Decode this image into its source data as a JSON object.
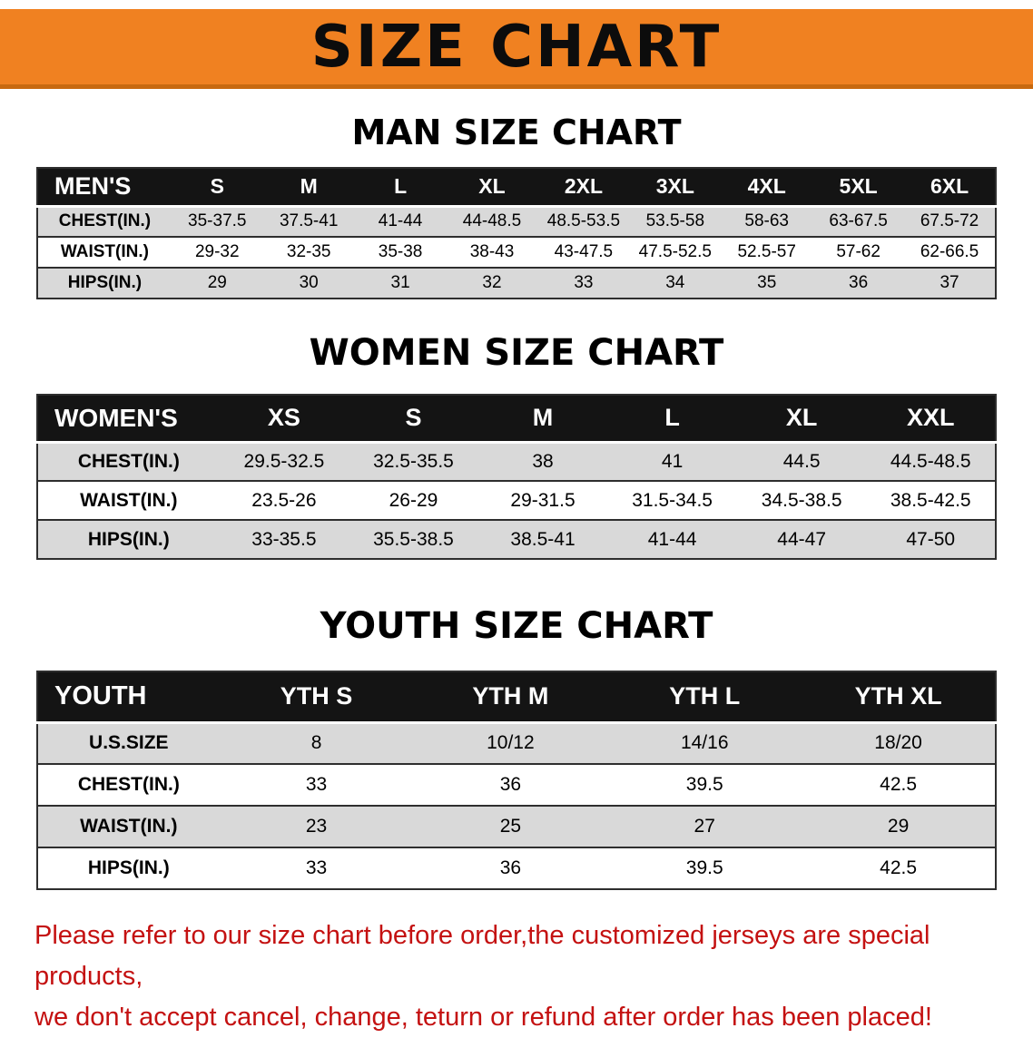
{
  "banner": {
    "title": "SIZE CHART"
  },
  "colors": {
    "banner_bg": "#f08121",
    "banner_edge": "#c8690f",
    "header_row_bg": "#141414",
    "shaded_row_bg": "#d9d9d9",
    "footer_text": "#c41111"
  },
  "sections": [
    {
      "heading": "MAN SIZE CHART",
      "table": {
        "header": [
          "MEN'S",
          "S",
          "M",
          "L",
          "XL",
          "2XL",
          "3XL",
          "4XL",
          "5XL",
          "6XL"
        ],
        "rows": [
          {
            "label": "CHEST(IN.)",
            "values": [
              "35-37.5",
              "37.5-41",
              "41-44",
              "44-48.5",
              "48.5-53.5",
              "53.5-58",
              "58-63",
              "63-67.5",
              "67.5-72"
            ]
          },
          {
            "label": "WAIST(IN.)",
            "values": [
              "29-32",
              "32-35",
              "35-38",
              "38-43",
              "43-47.5",
              "47.5-52.5",
              "52.5-57",
              "57-62",
              "62-66.5"
            ]
          },
          {
            "label": "HIPS(IN.)",
            "values": [
              "29",
              "30",
              "31",
              "32",
              "33",
              "34",
              "35",
              "36",
              "37"
            ]
          }
        ]
      }
    },
    {
      "heading": "WOMEN SIZE CHART",
      "table": {
        "header": [
          "WOMEN'S",
          "XS",
          "S",
          "M",
          "L",
          "XL",
          "XXL"
        ],
        "rows": [
          {
            "label": "CHEST(IN.)",
            "values": [
              "29.5-32.5",
              "32.5-35.5",
              "38",
              "41",
              "44.5",
              "44.5-48.5"
            ]
          },
          {
            "label": "WAIST(IN.)",
            "values": [
              "23.5-26",
              "26-29",
              "29-31.5",
              "31.5-34.5",
              "34.5-38.5",
              "38.5-42.5"
            ]
          },
          {
            "label": "HIPS(IN.)",
            "values": [
              "33-35.5",
              "35.5-38.5",
              "38.5-41",
              "41-44",
              "44-47",
              "47-50"
            ]
          }
        ]
      }
    },
    {
      "heading": "YOUTH SIZE CHART",
      "table": {
        "header": [
          "YOUTH",
          "YTH S",
          "YTH M",
          "YTH L",
          "YTH XL"
        ],
        "rows": [
          {
            "label": "U.S.SIZE",
            "values": [
              "8",
              "10/12",
              "14/16",
              "18/20"
            ]
          },
          {
            "label": "CHEST(IN.)",
            "values": [
              "33",
              "36",
              "39.5",
              "42.5"
            ]
          },
          {
            "label": "WAIST(IN.)",
            "values": [
              "23",
              "25",
              "27",
              "29"
            ]
          },
          {
            "label": "HIPS(IN.)",
            "values": [
              "33",
              "36",
              "39.5",
              "42.5"
            ]
          }
        ]
      }
    }
  ],
  "footer": {
    "line1": "Please refer to our size chart before order,the customized jerseys are special products,",
    "line2": "we don't accept cancel, change, teturn or refund after order has been placed!"
  }
}
